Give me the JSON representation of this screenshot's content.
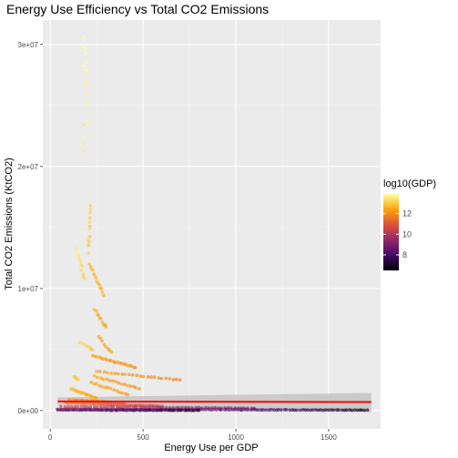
{
  "chart_data": {
    "type": "scatter",
    "title": "Energy Use Efficiency vs Total CO2 Emissions",
    "xlabel": "Energy Use per GDP",
    "ylabel": "Total CO2 Emissions (KtCO2)",
    "xlim": [
      -40,
      1780
    ],
    "ylim": [
      -1500000,
      32000000
    ],
    "x_ticks": [
      0,
      500,
      1000,
      1500
    ],
    "x_tick_labels": [
      "0",
      "500",
      "1000",
      "1500"
    ],
    "y_ticks": [
      0,
      10000000,
      20000000,
      30000000
    ],
    "y_tick_labels": [
      "0e+00",
      "1e+07",
      "2e+07",
      "3e+07"
    ],
    "grid": true,
    "panel_background": "#ebebeb",
    "legend": {
      "title": "log10(GDP)",
      "placement": "right",
      "range": [
        6.5,
        13.9
      ],
      "ticks": [
        8,
        10,
        12
      ],
      "tick_labels": [
        "8",
        "10",
        "12"
      ],
      "palette": [
        "#000004",
        "#420a68",
        "#932667",
        "#dd513a",
        "#fca50a",
        "#fcffa4"
      ]
    },
    "trend_line": {
      "x": [
        40,
        1730
      ],
      "y": [
        750000,
        700000
      ],
      "color": "#ff0000",
      "band_low": [
        420000,
        -100000
      ],
      "band_high": [
        1080000,
        1450000
      ],
      "band_color": "#bfbfbf"
    },
    "series": [
      {
        "clusters": [
          {
            "x0": 185,
            "y0": 30800000,
            "x1": 215,
            "y1": 22500000,
            "n": 12,
            "g0": 13.9,
            "g1": 13.7
          },
          {
            "x0": 178,
            "y0": 29500000,
            "x1": 190,
            "y1": 26500000,
            "n": 4,
            "g0": 13.9,
            "g1": 13.8
          },
          {
            "x0": 180,
            "y0": 23500000,
            "x1": 185,
            "y1": 21000000,
            "n": 3,
            "g0": 13.6,
            "g1": 13.5
          },
          {
            "x0": 218,
            "y0": 16800000,
            "x1": 205,
            "y1": 13000000,
            "n": 12,
            "g0": 13.2,
            "g1": 13.0
          },
          {
            "x0": 140,
            "y0": 13400000,
            "x1": 170,
            "y1": 11800000,
            "n": 10,
            "g0": 13.6,
            "g1": 13.4
          },
          {
            "x0": 170,
            "y0": 11500000,
            "x1": 185,
            "y1": 10800000,
            "n": 4,
            "g0": 13.3,
            "g1": 13.2
          },
          {
            "x0": 210,
            "y0": 12000000,
            "x1": 290,
            "y1": 9500000,
            "n": 14,
            "g0": 12.8,
            "g1": 12.6
          },
          {
            "x0": 240,
            "y0": 8300000,
            "x1": 300,
            "y1": 6800000,
            "n": 10,
            "g0": 12.6,
            "g1": 12.4
          },
          {
            "x0": 260,
            "y0": 6000000,
            "x1": 330,
            "y1": 4800000,
            "n": 8,
            "g0": 12.5,
            "g1": 12.3
          },
          {
            "x0": 160,
            "y0": 5600000,
            "x1": 230,
            "y1": 5000000,
            "n": 8,
            "g0": 13.2,
            "g1": 13.0
          },
          {
            "x0": 230,
            "y0": 4500000,
            "x1": 460,
            "y1": 3500000,
            "n": 22,
            "g0": 12.4,
            "g1": 12.0
          },
          {
            "x0": 250,
            "y0": 3200000,
            "x1": 700,
            "y1": 2500000,
            "n": 24,
            "g0": 12.3,
            "g1": 11.7
          },
          {
            "x0": 240,
            "y0": 2800000,
            "x1": 480,
            "y1": 1800000,
            "n": 16,
            "g0": 12.4,
            "g1": 12.0
          },
          {
            "x0": 220,
            "y0": 2300000,
            "x1": 420,
            "y1": 1300000,
            "n": 14,
            "g0": 12.5,
            "g1": 12.1
          },
          {
            "x0": 130,
            "y0": 2800000,
            "x1": 150,
            "y1": 2500000,
            "n": 5,
            "g0": 13.0,
            "g1": 12.9
          },
          {
            "x0": 110,
            "y0": 1800000,
            "x1": 250,
            "y1": 1000000,
            "n": 20,
            "g0": 12.8,
            "g1": 12.4
          },
          {
            "x0": 100,
            "y0": 900000,
            "x1": 400,
            "y1": 600000,
            "n": 28,
            "g0": 12.0,
            "g1": 11.5
          },
          {
            "x0": 80,
            "y0": 650000,
            "x1": 600,
            "y1": 350000,
            "n": 40,
            "g0": 11.5,
            "g1": 10.5
          },
          {
            "x0": 60,
            "y0": 320000,
            "x1": 1100,
            "y1": 180000,
            "n": 60,
            "g0": 10.5,
            "g1": 9.0
          },
          {
            "x0": 40,
            "y0": 120000,
            "x1": 1710,
            "y1": 30000,
            "n": 120,
            "g0": 10.0,
            "g1": 7.0
          },
          {
            "x0": 40,
            "y0": 50000,
            "x1": 800,
            "y1": 10000,
            "n": 60,
            "g0": 8.5,
            "g1": 7.0
          }
        ]
      }
    ]
  }
}
